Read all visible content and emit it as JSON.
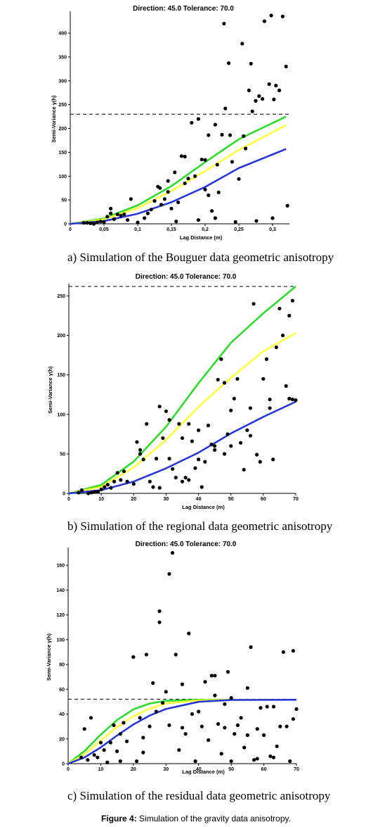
{
  "figure_caption": {
    "label": "Figure 4:",
    "text": "Simulation of the gravity data anisotropy."
  },
  "chart_data": [
    {
      "type": "scatter",
      "panel": "a",
      "caption": "a)   Simulation of the Bouguer data geometric anisotropy",
      "header": "Direction: 45.0   Tolerance: 70.0",
      "xlabel": "Lag Distance (m)",
      "ylabel": "Semi-Variance γ(h)",
      "xlim": [
        0,
        0.325
      ],
      "ylim": [
        0,
        440
      ],
      "xticks": [
        0,
        0.05,
        0.1,
        0.15,
        0.2,
        0.25,
        0.3
      ],
      "xtick_labels": [
        "0",
        "0,05",
        "0,1",
        "0,15",
        "0,2",
        "0,25",
        "0,3"
      ],
      "yticks": [
        0,
        50,
        100,
        150,
        200,
        250,
        300,
        350,
        400
      ],
      "sill": 230,
      "points": [
        [
          0.02,
          2
        ],
        [
          0.025,
          2
        ],
        [
          0.03,
          1
        ],
        [
          0.035,
          0
        ],
        [
          0.04,
          3
        ],
        [
          0.045,
          5
        ],
        [
          0.05,
          4
        ],
        [
          0.055,
          15
        ],
        [
          0.06,
          22
        ],
        [
          0.06,
          32
        ],
        [
          0.065,
          10
        ],
        [
          0.07,
          20
        ],
        [
          0.075,
          17
        ],
        [
          0.08,
          20
        ],
        [
          0.085,
          8
        ],
        [
          0.09,
          52
        ],
        [
          0.1,
          3
        ],
        [
          0.11,
          12
        ],
        [
          0.115,
          22
        ],
        [
          0.12,
          30
        ],
        [
          0.125,
          48
        ],
        [
          0.13,
          78
        ],
        [
          0.133,
          75
        ],
        [
          0.135,
          40
        ],
        [
          0.14,
          52
        ],
        [
          0.145,
          67
        ],
        [
          0.145,
          90
        ],
        [
          0.15,
          32
        ],
        [
          0.155,
          108
        ],
        [
          0.157,
          5
        ],
        [
          0.16,
          45
        ],
        [
          0.165,
          142
        ],
        [
          0.17,
          141
        ],
        [
          0.17,
          85
        ],
        [
          0.175,
          95
        ],
        [
          0.18,
          212
        ],
        [
          0.185,
          100
        ],
        [
          0.19,
          220
        ],
        [
          0.19,
          8
        ],
        [
          0.195,
          135
        ],
        [
          0.2,
          134
        ],
        [
          0.2,
          72
        ],
        [
          0.205,
          60
        ],
        [
          0.205,
          186
        ],
        [
          0.21,
          27
        ],
        [
          0.215,
          12
        ],
        [
          0.215,
          208
        ],
        [
          0.218,
          124
        ],
        [
          0.22,
          66
        ],
        [
          0.225,
          187
        ],
        [
          0.228,
          420
        ],
        [
          0.23,
          242
        ],
        [
          0.235,
          337
        ],
        [
          0.237,
          186
        ],
        [
          0.24,
          130
        ],
        [
          0.245,
          4
        ],
        [
          0.25,
          94
        ],
        [
          0.255,
          378
        ],
        [
          0.257,
          184
        ],
        [
          0.26,
          158
        ],
        [
          0.265,
          280
        ],
        [
          0.268,
          336
        ],
        [
          0.27,
          236
        ],
        [
          0.275,
          258
        ],
        [
          0.276,
          6
        ],
        [
          0.28,
          268
        ],
        [
          0.285,
          262
        ],
        [
          0.288,
          425
        ],
        [
          0.295,
          293
        ],
        [
          0.298,
          437
        ],
        [
          0.3,
          12
        ],
        [
          0.302,
          261
        ],
        [
          0.305,
          290
        ],
        [
          0.31,
          280
        ],
        [
          0.315,
          435
        ],
        [
          0.32,
          330
        ],
        [
          0.322,
          38
        ]
      ],
      "series": [
        {
          "color": "#22dd22",
          "values": [
            [
              0,
              0
            ],
            [
              0.05,
              11.3
            ],
            [
              0.1,
              38.9
            ],
            [
              0.15,
              79.2
            ],
            [
              0.2,
              129.3
            ],
            [
              0.25,
              177.5
            ],
            [
              0.32,
              225
            ]
          ]
        },
        {
          "color": "#ffff33",
          "values": [
            [
              0,
              0
            ],
            [
              0.05,
              9.6
            ],
            [
              0.1,
              33
            ],
            [
              0.15,
              68.8
            ],
            [
              0.2,
              110.9
            ],
            [
              0.25,
              155
            ],
            [
              0.32,
              207
            ]
          ]
        },
        {
          "color": "#2233dd",
          "values": [
            [
              0,
              0
            ],
            [
              0.05,
              5.8
            ],
            [
              0.1,
              21.1
            ],
            [
              0.15,
              45.3
            ],
            [
              0.2,
              77.4
            ],
            [
              0.25,
              116.9
            ],
            [
              0.32,
              157
            ]
          ]
        }
      ]
    },
    {
      "type": "scatter",
      "panel": "b",
      "caption": "b)   Simulation of the regional data geometric anisotropy",
      "header": "Direction: 45.0   Tolerance: 70.0",
      "xlabel": "Lag Distance (m)",
      "ylabel": "Semi-Variance γ(h)",
      "xlim": [
        0,
        70
      ],
      "ylim": [
        0,
        262
      ],
      "xticks": [
        0,
        10,
        20,
        30,
        40,
        50,
        60,
        70
      ],
      "xtick_labels": [
        "0",
        "10",
        "20",
        "30",
        "40",
        "50",
        "60",
        "70"
      ],
      "yticks": [
        0,
        50,
        100,
        150,
        200,
        250
      ],
      "sill": 262,
      "points": [
        [
          3,
          1
        ],
        [
          4,
          4
        ],
        [
          6,
          0
        ],
        [
          7,
          1
        ],
        [
          8,
          2
        ],
        [
          9,
          2
        ],
        [
          10,
          5
        ],
        [
          11,
          8
        ],
        [
          12,
          11
        ],
        [
          13,
          7
        ],
        [
          14,
          15
        ],
        [
          15,
          26
        ],
        [
          16,
          17
        ],
        [
          17,
          28
        ],
        [
          18,
          15
        ],
        [
          20,
          12
        ],
        [
          21,
          65
        ],
        [
          22,
          55
        ],
        [
          22,
          50
        ],
        [
          23,
          43
        ],
        [
          24,
          88
        ],
        [
          25,
          15
        ],
        [
          26,
          8
        ],
        [
          27,
          44
        ],
        [
          28,
          110
        ],
        [
          28,
          7
        ],
        [
          29,
          70
        ],
        [
          30,
          104
        ],
        [
          31,
          93
        ],
        [
          31,
          44
        ],
        [
          32,
          31
        ],
        [
          33,
          20
        ],
        [
          34,
          88
        ],
        [
          35,
          15
        ],
        [
          35,
          70
        ],
        [
          36,
          20
        ],
        [
          37,
          88
        ],
        [
          37,
          17
        ],
        [
          38,
          66
        ],
        [
          39,
          32
        ],
        [
          40,
          80
        ],
        [
          40,
          43
        ],
        [
          41,
          8
        ],
        [
          42,
          40
        ],
        [
          43,
          86
        ],
        [
          44,
          62
        ],
        [
          45,
          60
        ],
        [
          45,
          55
        ],
        [
          46,
          144
        ],
        [
          47,
          170
        ],
        [
          48,
          140
        ],
        [
          48,
          50
        ],
        [
          49,
          75
        ],
        [
          50,
          105
        ],
        [
          50,
          60
        ],
        [
          51,
          120
        ],
        [
          52,
          145
        ],
        [
          53,
          64
        ],
        [
          54,
          30
        ],
        [
          55,
          80
        ],
        [
          56,
          108
        ],
        [
          56,
          73
        ],
        [
          57,
          240
        ],
        [
          58,
          49
        ],
        [
          59,
          40
        ],
        [
          60,
          145
        ],
        [
          61,
          170
        ],
        [
          62,
          108
        ],
        [
          62,
          119
        ],
        [
          63,
          43
        ],
        [
          64,
          185
        ],
        [
          65,
          234
        ],
        [
          66,
          200
        ],
        [
          67,
          136
        ],
        [
          68,
          225
        ],
        [
          68,
          120
        ],
        [
          69,
          119
        ],
        [
          69,
          244
        ],
        [
          70,
          118
        ]
      ],
      "series": [
        {
          "color": "#22dd22",
          "values": [
            [
              0,
              0
            ],
            [
              10,
              10.8
            ],
            [
              20,
              40.3
            ],
            [
              30,
              84.4
            ],
            [
              40,
              139.6
            ],
            [
              50,
              190.7
            ],
            [
              60,
              228.1
            ],
            [
              70,
              262
            ]
          ]
        },
        {
          "color": "#ffff33",
          "values": [
            [
              0,
              0
            ],
            [
              10,
              8.3
            ],
            [
              20,
              32.8
            ],
            [
              30,
              67.7
            ],
            [
              40,
              109.7
            ],
            [
              50,
              146.3
            ],
            [
              60,
              180
            ],
            [
              70,
              203
            ]
          ]
        },
        {
          "color": "#2233dd",
          "values": [
            [
              0,
              0
            ],
            [
              10,
              4.1
            ],
            [
              20,
              15
            ],
            [
              30,
              31.7
            ],
            [
              40,
              51.6
            ],
            [
              50,
              75.9
            ],
            [
              60,
              97
            ],
            [
              70,
              116
            ]
          ]
        }
      ]
    },
    {
      "type": "scatter",
      "panel": "c",
      "caption": "c)   Simulation of the residual data geometric anisotropy",
      "header": "Direction: 45.0   Tolerance: 70.0",
      "xlabel": "Lag Distance (m)",
      "ylabel": "Semi-Variance γ(h)",
      "xlim": [
        0,
        70
      ],
      "ylim": [
        0,
        172
      ],
      "xticks": [
        0,
        10,
        20,
        30,
        40,
        50,
        60,
        70
      ],
      "xtick_labels": [
        "0",
        "10",
        "20",
        "30",
        "40",
        "50",
        "60",
        "70"
      ],
      "yticks": [
        0,
        20,
        40,
        60,
        80,
        100,
        120,
        140,
        160
      ],
      "sill": 52,
      "points": [
        [
          4,
          5
        ],
        [
          5,
          28
        ],
        [
          6,
          3
        ],
        [
          7,
          37
        ],
        [
          8,
          7
        ],
        [
          9,
          5
        ],
        [
          10,
          17
        ],
        [
          11,
          11
        ],
        [
          12,
          1
        ],
        [
          13,
          17
        ],
        [
          14,
          31
        ],
        [
          15,
          10
        ],
        [
          16,
          2
        ],
        [
          16,
          24
        ],
        [
          17,
          33
        ],
        [
          18,
          18
        ],
        [
          20,
          86
        ],
        [
          21,
          2
        ],
        [
          22,
          37
        ],
        [
          23,
          21
        ],
        [
          23,
          9
        ],
        [
          24,
          88
        ],
        [
          25,
          30
        ],
        [
          26,
          65
        ],
        [
          27,
          42
        ],
        [
          28,
          123
        ],
        [
          28,
          114
        ],
        [
          29,
          49
        ],
        [
          30,
          58
        ],
        [
          31,
          153
        ],
        [
          31,
          31
        ],
        [
          32,
          170
        ],
        [
          33,
          88
        ],
        [
          34,
          11
        ],
        [
          35,
          64
        ],
        [
          35,
          29
        ],
        [
          36,
          24
        ],
        [
          37,
          105
        ],
        [
          38,
          40
        ],
        [
          39,
          2
        ],
        [
          40,
          42
        ],
        [
          41,
          30
        ],
        [
          42,
          66
        ],
        [
          43,
          19
        ],
        [
          44,
          71
        ],
        [
          45,
          55
        ],
        [
          45,
          71
        ],
        [
          46,
          32
        ],
        [
          47,
          8
        ],
        [
          48,
          29
        ],
        [
          48,
          48
        ],
        [
          49,
          74
        ],
        [
          50,
          2
        ],
        [
          50,
          53
        ],
        [
          51,
          24
        ],
        [
          52,
          31
        ],
        [
          53,
          37
        ],
        [
          54,
          13
        ],
        [
          55,
          61
        ],
        [
          55,
          23
        ],
        [
          56,
          94
        ],
        [
          57,
          3
        ],
        [
          58,
          4
        ],
        [
          58,
          28
        ],
        [
          59,
          45
        ],
        [
          60,
          23
        ],
        [
          61,
          46
        ],
        [
          62,
          6
        ],
        [
          63,
          5
        ],
        [
          63,
          46
        ],
        [
          64,
          14
        ],
        [
          65,
          30
        ],
        [
          66,
          90
        ],
        [
          67,
          30
        ],
        [
          68,
          2
        ],
        [
          69,
          91
        ],
        [
          69,
          36
        ],
        [
          70,
          44
        ]
      ],
      "series": [
        {
          "color": "#22dd22",
          "values": [
            [
              0,
              0
            ],
            [
              5,
              10.1
            ],
            [
              10,
              23.4
            ],
            [
              15,
              35.2
            ],
            [
              20,
              43.8
            ],
            [
              25,
              48.5
            ],
            [
              30,
              50.7
            ],
            [
              40,
              51.5
            ],
            [
              50,
              51.5
            ],
            [
              70,
              51.5
            ]
          ]
        },
        {
          "color": "#ffff33",
          "values": [
            [
              0,
              0
            ],
            [
              5,
              7.5
            ],
            [
              10,
              18.6
            ],
            [
              15,
              29.5
            ],
            [
              20,
              38.3
            ],
            [
              25,
              44.4
            ],
            [
              30,
              48.6
            ],
            [
              40,
              51.1
            ],
            [
              50,
              51.5
            ],
            [
              70,
              51.5
            ]
          ]
        },
        {
          "color": "#2233dd",
          "values": [
            [
              0,
              0
            ],
            [
              5,
              5
            ],
            [
              10,
              13.1
            ],
            [
              15,
              22.7
            ],
            [
              20,
              31.6
            ],
            [
              25,
              38.8
            ],
            [
              30,
              44.1
            ],
            [
              40,
              49.9
            ],
            [
              50,
              51.4
            ],
            [
              70,
              51.5
            ]
          ]
        }
      ]
    }
  ]
}
